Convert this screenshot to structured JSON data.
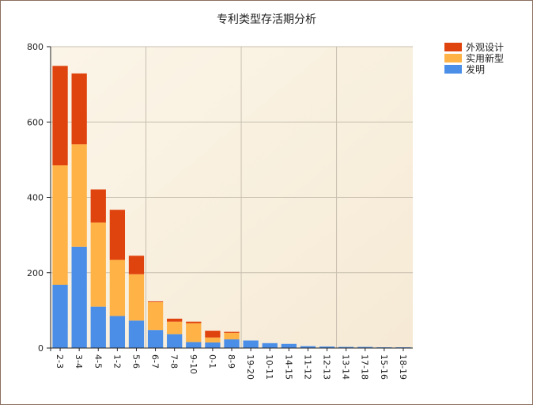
{
  "chart_data": {
    "type": "bar",
    "stacked": true,
    "title": "专利类型存活期分析",
    "xlabel": "",
    "ylabel": "",
    "ylim": [
      0,
      800
    ],
    "yticks": [
      0,
      200,
      400,
      600,
      800
    ],
    "grid": true,
    "legend_position": "top-right",
    "categories": [
      "2-3",
      "3-4",
      "4-5",
      "1-2",
      "5-6",
      "6-7",
      "7-8",
      "9-10",
      "0-1",
      "8-9",
      "19-20",
      "10-11",
      "14-15",
      "11-12",
      "12-13",
      "13-14",
      "17-18",
      "15-16",
      "18-19"
    ],
    "series": [
      {
        "name": "发明",
        "color": "#4a8ee8",
        "values": [
          168,
          269,
          110,
          85,
          73,
          48,
          37,
          16,
          15,
          23,
          20,
          13,
          11,
          5,
          4,
          3,
          3,
          2,
          2
        ]
      },
      {
        "name": "实用新型",
        "color": "#ffb347",
        "values": [
          317,
          272,
          223,
          149,
          123,
          74,
          33,
          50,
          13,
          17,
          0,
          0,
          0,
          0,
          0,
          0,
          0,
          0,
          0
        ]
      },
      {
        "name": "外观设计",
        "color": "#e0440e",
        "values": [
          264,
          188,
          88,
          133,
          49,
          2,
          8,
          4,
          18,
          3,
          0,
          0,
          0,
          0,
          0,
          0,
          0,
          0,
          0
        ]
      }
    ],
    "legend_order": [
      "外观设计",
      "实用新型",
      "发明"
    ]
  }
}
